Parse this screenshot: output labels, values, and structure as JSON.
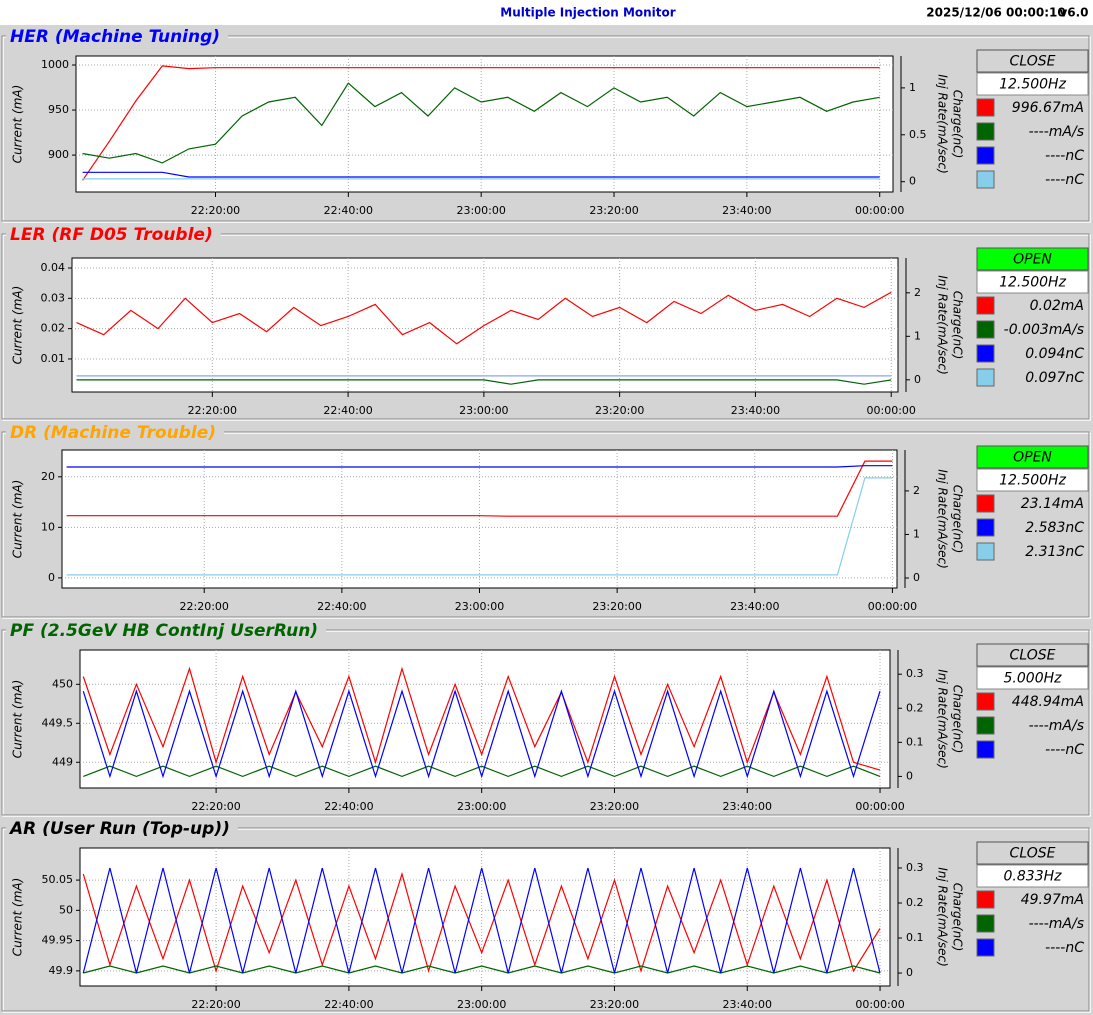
{
  "header": {
    "title": "Multiple Injection Monitor",
    "timestamp": "2025/12/06 00:00:10",
    "version": "v6.0"
  },
  "chart_data": [
    {
      "type": "line",
      "title": "HER  (Machine Tuning)",
      "title_color": "#0000ff",
      "status": "CLOSE",
      "status_color": "#d4d4d4",
      "rate": "12.500Hz",
      "ylabel": "Current (mA)",
      "y2labels": [
        "Charge(nC)",
        "Inj Rate(mA/sec)"
      ],
      "grid": true,
      "x": [
        "22:00:00",
        "22:04:00",
        "22:08:00",
        "22:12:00",
        "22:16:00",
        "22:20:00",
        "22:24:00",
        "22:28:00",
        "22:32:00",
        "22:36:00",
        "22:40:00",
        "22:44:00",
        "22:48:00",
        "22:52:00",
        "22:56:00",
        "23:00:00",
        "23:04:00",
        "23:08:00",
        "23:12:00",
        "23:16:00",
        "23:20:00",
        "23:24:00",
        "23:28:00",
        "23:32:00",
        "23:36:00",
        "23:40:00",
        "23:44:00",
        "23:48:00",
        "23:52:00",
        "23:56:00",
        "00:00:00"
      ],
      "xlim": [
        "21:59:00",
        "00:02:00"
      ],
      "xticks": [
        "22:20:00",
        "22:40:00",
        "23:00:00",
        "23:20:00",
        "23:40:00",
        "00:00:00"
      ],
      "ylim": [
        859,
        1010
      ],
      "yticks": [
        900,
        950,
        1000
      ],
      "y2lim": [
        -0.11,
        1.34
      ],
      "y2ticks": [
        0,
        0.5,
        1
      ],
      "series": [
        {
          "name": "996.67mA",
          "color": "#ff0000",
          "values": [
            872,
            915,
            960,
            999,
            996,
            997,
            997,
            997,
            997,
            997,
            997,
            997,
            997,
            997,
            997,
            997,
            997,
            997,
            997,
            997,
            997,
            997,
            997,
            997,
            997,
            997,
            997,
            997,
            997,
            997,
            997
          ]
        },
        {
          "name": "----mA/s",
          "color": "#006400",
          "axis": "y2",
          "values": [
            0.3,
            0.25,
            0.3,
            0.2,
            0.35,
            0.4,
            0.7,
            0.85,
            0.9,
            0.6,
            1.05,
            0.8,
            0.95,
            0.7,
            1.0,
            0.85,
            0.9,
            0.75,
            0.95,
            0.8,
            1.0,
            0.85,
            0.9,
            0.7,
            0.95,
            0.8,
            0.85,
            0.9,
            0.75,
            0.85,
            0.9
          ]
        },
        {
          "name": "----nC",
          "color": "#0000ff",
          "axis": "y2",
          "values": [
            0.1,
            0.1,
            0.1,
            0.1,
            0.05,
            0.05,
            0.05,
            0.05,
            0.05,
            0.05,
            0.05,
            0.05,
            0.05,
            0.05,
            0.05,
            0.05,
            0.05,
            0.05,
            0.05,
            0.05,
            0.05,
            0.05,
            0.05,
            0.05,
            0.05,
            0.05,
            0.05,
            0.05,
            0.05,
            0.05,
            0.05
          ]
        },
        {
          "name": "----nC",
          "color": "#87ceeb",
          "axis": "y2",
          "values": [
            0.03,
            0.03,
            0.03,
            0.03,
            0.03,
            0.03,
            0.03,
            0.03,
            0.03,
            0.03,
            0.03,
            0.03,
            0.03,
            0.03,
            0.03,
            0.03,
            0.03,
            0.03,
            0.03,
            0.03,
            0.03,
            0.03,
            0.03,
            0.03,
            0.03,
            0.03,
            0.03,
            0.03,
            0.03,
            0.03,
            0.03
          ]
        }
      ]
    },
    {
      "type": "line",
      "title": "LER  (RF D05 Trouble)",
      "title_color": "#ff0000",
      "status": "OPEN",
      "status_color": "#00ff00",
      "rate": "12.500Hz",
      "ylabel": "Current (mA)",
      "y2labels": [
        "Charge(nC)",
        "Inj Rate(mA/sec)"
      ],
      "grid": true,
      "x": [
        "22:00:00",
        "22:04:00",
        "22:08:00",
        "22:12:00",
        "22:16:00",
        "22:20:00",
        "22:24:00",
        "22:28:00",
        "22:32:00",
        "22:36:00",
        "22:40:00",
        "22:44:00",
        "22:48:00",
        "22:52:00",
        "22:56:00",
        "23:00:00",
        "23:04:00",
        "23:08:00",
        "23:12:00",
        "23:16:00",
        "23:20:00",
        "23:24:00",
        "23:28:00",
        "23:32:00",
        "23:36:00",
        "23:40:00",
        "23:44:00",
        "23:48:00",
        "23:52:00",
        "23:56:00",
        "00:00:00"
      ],
      "xlim": [
        "21:59:20",
        "00:01:00"
      ],
      "xticks": [
        "22:20:00",
        "22:40:00",
        "23:00:00",
        "23:20:00",
        "23:40:00",
        "00:00:00"
      ],
      "ylim": [
        -0.0009,
        0.0433
      ],
      "yticks": [
        0.01,
        0.02,
        0.03,
        0.04
      ],
      "y2lim": [
        -0.28,
        2.8
      ],
      "y2ticks": [
        0,
        1,
        2
      ],
      "series": [
        {
          "name": "0.02mA",
          "color": "#ff0000",
          "values": [
            0.022,
            0.018,
            0.026,
            0.02,
            0.03,
            0.022,
            0.025,
            0.019,
            0.027,
            0.021,
            0.024,
            0.028,
            0.018,
            0.022,
            0.015,
            0.021,
            0.026,
            0.023,
            0.03,
            0.024,
            0.027,
            0.022,
            0.029,
            0.025,
            0.031,
            0.026,
            0.028,
            0.024,
            0.03,
            0.027,
            0.032
          ]
        },
        {
          "name": "-0.003mA/s",
          "color": "#006400",
          "axis": "y2",
          "values": [
            -0.003,
            -0.003,
            -0.003,
            -0.003,
            -0.003,
            -0.003,
            -0.003,
            -0.003,
            -0.003,
            -0.003,
            -0.003,
            -0.003,
            -0.003,
            -0.003,
            -0.003,
            -0.003,
            -0.1,
            -0.003,
            -0.003,
            -0.003,
            -0.003,
            -0.003,
            -0.003,
            -0.003,
            -0.003,
            -0.003,
            -0.003,
            -0.003,
            -0.003,
            -0.1,
            -0.003
          ]
        },
        {
          "name": "0.094nC",
          "color": "#0000ff",
          "axis": "y2",
          "values": [
            0.094,
            0.094,
            0.094,
            0.094,
            0.094,
            0.094,
            0.094,
            0.094,
            0.094,
            0.094,
            0.094,
            0.094,
            0.094,
            0.094,
            0.094,
            0.094,
            0.094,
            0.094,
            0.094,
            0.094,
            0.094,
            0.094,
            0.094,
            0.094,
            0.094,
            0.094,
            0.094,
            0.094,
            0.094,
            0.094,
            0.094
          ]
        },
        {
          "name": "0.097nC",
          "color": "#87ceeb",
          "axis": "y2",
          "values": [
            0.097,
            0.097,
            0.097,
            0.097,
            0.097,
            0.097,
            0.097,
            0.097,
            0.097,
            0.097,
            0.097,
            0.097,
            0.097,
            0.097,
            0.097,
            0.097,
            0.097,
            0.097,
            0.097,
            0.097,
            0.097,
            0.097,
            0.097,
            0.097,
            0.097,
            0.097,
            0.097,
            0.097,
            0.097,
            0.097,
            0.097
          ]
        }
      ]
    },
    {
      "type": "line",
      "title": "DR  (Machine Trouble)",
      "title_color": "#ffa500",
      "status": "OPEN",
      "status_color": "#00ff00",
      "rate": "12.500Hz",
      "ylabel": "Current (mA)",
      "y2labels": [
        "Charge(nC)",
        "Inj Rate(mA/sec)"
      ],
      "grid": true,
      "x": [
        "22:00:00",
        "22:04:00",
        "22:08:00",
        "22:12:00",
        "22:16:00",
        "22:20:00",
        "22:24:00",
        "22:28:00",
        "22:32:00",
        "22:36:00",
        "22:40:00",
        "22:44:00",
        "22:48:00",
        "22:52:00",
        "22:56:00",
        "23:00:00",
        "23:04:00",
        "23:08:00",
        "23:12:00",
        "23:16:00",
        "23:20:00",
        "23:24:00",
        "23:28:00",
        "23:32:00",
        "23:36:00",
        "23:40:00",
        "23:44:00",
        "23:48:00",
        "23:52:00",
        "23:56:00",
        "00:00:00"
      ],
      "xlim": [
        "21:59:20",
        "00:00:40"
      ],
      "xticks": [
        "22:20:00",
        "22:40:00",
        "23:00:00",
        "23:20:00",
        "23:40:00",
        "00:00:00"
      ],
      "ylim": [
        -2,
        25.3
      ],
      "yticks": [
        0,
        10,
        20
      ],
      "y2lim": [
        -0.23,
        2.94
      ],
      "y2ticks": [
        0,
        1,
        2
      ],
      "series": [
        {
          "name": "23.14mA",
          "color": "#ff0000",
          "values": [
            12.3,
            12.3,
            12.3,
            12.3,
            12.3,
            12.3,
            12.3,
            12.3,
            12.3,
            12.3,
            12.3,
            12.3,
            12.3,
            12.3,
            12.3,
            12.3,
            12.2,
            12.2,
            12.2,
            12.2,
            12.2,
            12.2,
            12.2,
            12.2,
            12.2,
            12.2,
            12.2,
            12.2,
            12.2,
            23.1,
            23.1
          ]
        },
        {
          "name": "2.583nC",
          "color": "#0000ff",
          "axis": "y2",
          "values": [
            2.55,
            2.55,
            2.55,
            2.55,
            2.55,
            2.55,
            2.55,
            2.55,
            2.55,
            2.55,
            2.55,
            2.55,
            2.55,
            2.55,
            2.55,
            2.55,
            2.55,
            2.55,
            2.55,
            2.55,
            2.55,
            2.55,
            2.55,
            2.55,
            2.55,
            2.55,
            2.55,
            2.55,
            2.55,
            2.58,
            2.58
          ]
        },
        {
          "name": "2.313nC",
          "color": "#87ceeb",
          "axis": "y2",
          "values": [
            0.07,
            0.07,
            0.07,
            0.07,
            0.07,
            0.07,
            0.07,
            0.07,
            0.07,
            0.07,
            0.07,
            0.07,
            0.07,
            0.07,
            0.07,
            0.07,
            0.07,
            0.07,
            0.07,
            0.07,
            0.07,
            0.07,
            0.07,
            0.07,
            0.07,
            0.07,
            0.07,
            0.07,
            0.07,
            2.3,
            2.3
          ]
        }
      ]
    },
    {
      "type": "line",
      "title": "PF  (2.5GeV HB ContInj UserRun)",
      "title_color": "#006400",
      "status": "CLOSE",
      "status_color": "#d4d4d4",
      "rate": "5.000Hz",
      "ylabel": "Current (mA)",
      "y2labels": [
        "Charge(nC)",
        "Inj Rate(mA/sec)"
      ],
      "grid": true,
      "x": [
        "22:00:00",
        "22:04:00",
        "22:08:00",
        "22:12:00",
        "22:16:00",
        "22:20:00",
        "22:24:00",
        "22:28:00",
        "22:32:00",
        "22:36:00",
        "22:40:00",
        "22:44:00",
        "22:48:00",
        "22:52:00",
        "22:56:00",
        "23:00:00",
        "23:04:00",
        "23:08:00",
        "23:12:00",
        "23:16:00",
        "23:20:00",
        "23:24:00",
        "23:28:00",
        "23:32:00",
        "23:36:00",
        "23:40:00",
        "23:44:00",
        "23:48:00",
        "23:52:00",
        "23:56:00",
        "00:00:00"
      ],
      "xlim": [
        "21:59:30",
        "00:01:30"
      ],
      "xticks": [
        "22:20:00",
        "22:40:00",
        "23:00:00",
        "23:20:00",
        "23:40:00",
        "00:00:00"
      ],
      "ylim": [
        448.67,
        450.44
      ],
      "yticks": [
        449,
        449.5,
        450
      ],
      "y2lim": [
        -0.034,
        0.371
      ],
      "y2ticks": [
        0,
        0.1,
        0.2,
        0.3
      ],
      "series": [
        {
          "name": "448.94mA",
          "color": "#ff0000",
          "values": [
            450.1,
            449.1,
            450.0,
            449.2,
            450.2,
            449.0,
            450.1,
            449.1,
            449.9,
            449.2,
            450.1,
            449.0,
            450.2,
            449.1,
            450.0,
            449.1,
            450.1,
            449.2,
            449.9,
            449.0,
            450.1,
            449.1,
            450.0,
            449.2,
            450.1,
            449.0,
            449.9,
            449.1,
            450.1,
            449.0,
            448.9
          ]
        },
        {
          "name": "----mA/s",
          "color": "#006400",
          "axis": "y2",
          "values": [
            0,
            0.03,
            0,
            0.03,
            0,
            0.03,
            0,
            0.03,
            0,
            0.03,
            0,
            0.03,
            0,
            0.03,
            0,
            0.03,
            0,
            0.03,
            0,
            0.03,
            0,
            0.03,
            0,
            0.03,
            0,
            0.03,
            0,
            0.03,
            0,
            0.03,
            0
          ]
        },
        {
          "name": "----nC",
          "color": "#0000ff",
          "axis": "y2",
          "values": [
            0.25,
            0,
            0.25,
            0,
            0.25,
            0,
            0.25,
            0,
            0.25,
            0,
            0.25,
            0,
            0.25,
            0,
            0.25,
            0,
            0.25,
            0,
            0.25,
            0,
            0.25,
            0,
            0.25,
            0,
            0.25,
            0,
            0.25,
            0,
            0.25,
            0,
            0.25
          ]
        }
      ]
    },
    {
      "type": "line",
      "title": "AR  (User Run (Top-up))",
      "title_color": "#000000",
      "status": "CLOSE",
      "status_color": "#d4d4d4",
      "rate": "0.833Hz",
      "ylabel": "Current (mA)",
      "y2labels": [
        "Charge(nC)",
        "Inj Rate(mA/sec)"
      ],
      "grid": true,
      "x": [
        "22:00:00",
        "22:04:00",
        "22:08:00",
        "22:12:00",
        "22:16:00",
        "22:20:00",
        "22:24:00",
        "22:28:00",
        "22:32:00",
        "22:36:00",
        "22:40:00",
        "22:44:00",
        "22:48:00",
        "22:52:00",
        "22:56:00",
        "23:00:00",
        "23:04:00",
        "23:08:00",
        "23:12:00",
        "23:16:00",
        "23:20:00",
        "23:24:00",
        "23:28:00",
        "23:32:00",
        "23:36:00",
        "23:40:00",
        "23:44:00",
        "23:48:00",
        "23:52:00",
        "23:56:00",
        "00:00:00"
      ],
      "xlim": [
        "21:59:30",
        "00:01:30"
      ],
      "xticks": [
        "22:20:00",
        "22:40:00",
        "23:00:00",
        "23:20:00",
        "23:40:00",
        "00:00:00"
      ],
      "ylim": [
        49.875,
        50.103
      ],
      "yticks": [
        49.9,
        49.95,
        50,
        50.05
      ],
      "y2lim": [
        -0.037,
        0.357
      ],
      "y2ticks": [
        0,
        0.1,
        0.2,
        0.3
      ],
      "series": [
        {
          "name": "49.97mA",
          "color": "#ff0000",
          "values": [
            50.06,
            49.91,
            50.04,
            49.92,
            50.05,
            49.9,
            50.04,
            49.93,
            50.05,
            49.91,
            50.04,
            49.92,
            50.06,
            49.9,
            50.04,
            49.93,
            50.05,
            49.91,
            50.04,
            49.92,
            50.05,
            49.9,
            50.04,
            49.93,
            50.05,
            49.91,
            50.04,
            49.92,
            50.05,
            49.9,
            49.97
          ]
        },
        {
          "name": "----mA/s",
          "color": "#006400",
          "axis": "y2",
          "values": [
            0,
            0.02,
            0,
            0.02,
            0,
            0.02,
            0,
            0.02,
            0,
            0.02,
            0,
            0.02,
            0,
            0.02,
            0,
            0.02,
            0,
            0.02,
            0,
            0.02,
            0,
            0.02,
            0,
            0.02,
            0,
            0.02,
            0,
            0.02,
            0,
            0.02,
            0
          ]
        },
        {
          "name": "----nC",
          "color": "#0000ff",
          "axis": "y2",
          "values": [
            0,
            0.3,
            0,
            0.3,
            0,
            0.3,
            0,
            0.3,
            0,
            0.3,
            0,
            0.3,
            0,
            0.3,
            0,
            0.3,
            0,
            0.3,
            0,
            0.3,
            0,
            0.3,
            0,
            0.3,
            0,
            0.3,
            0,
            0.3,
            0,
            0.3,
            0
          ]
        }
      ]
    }
  ]
}
